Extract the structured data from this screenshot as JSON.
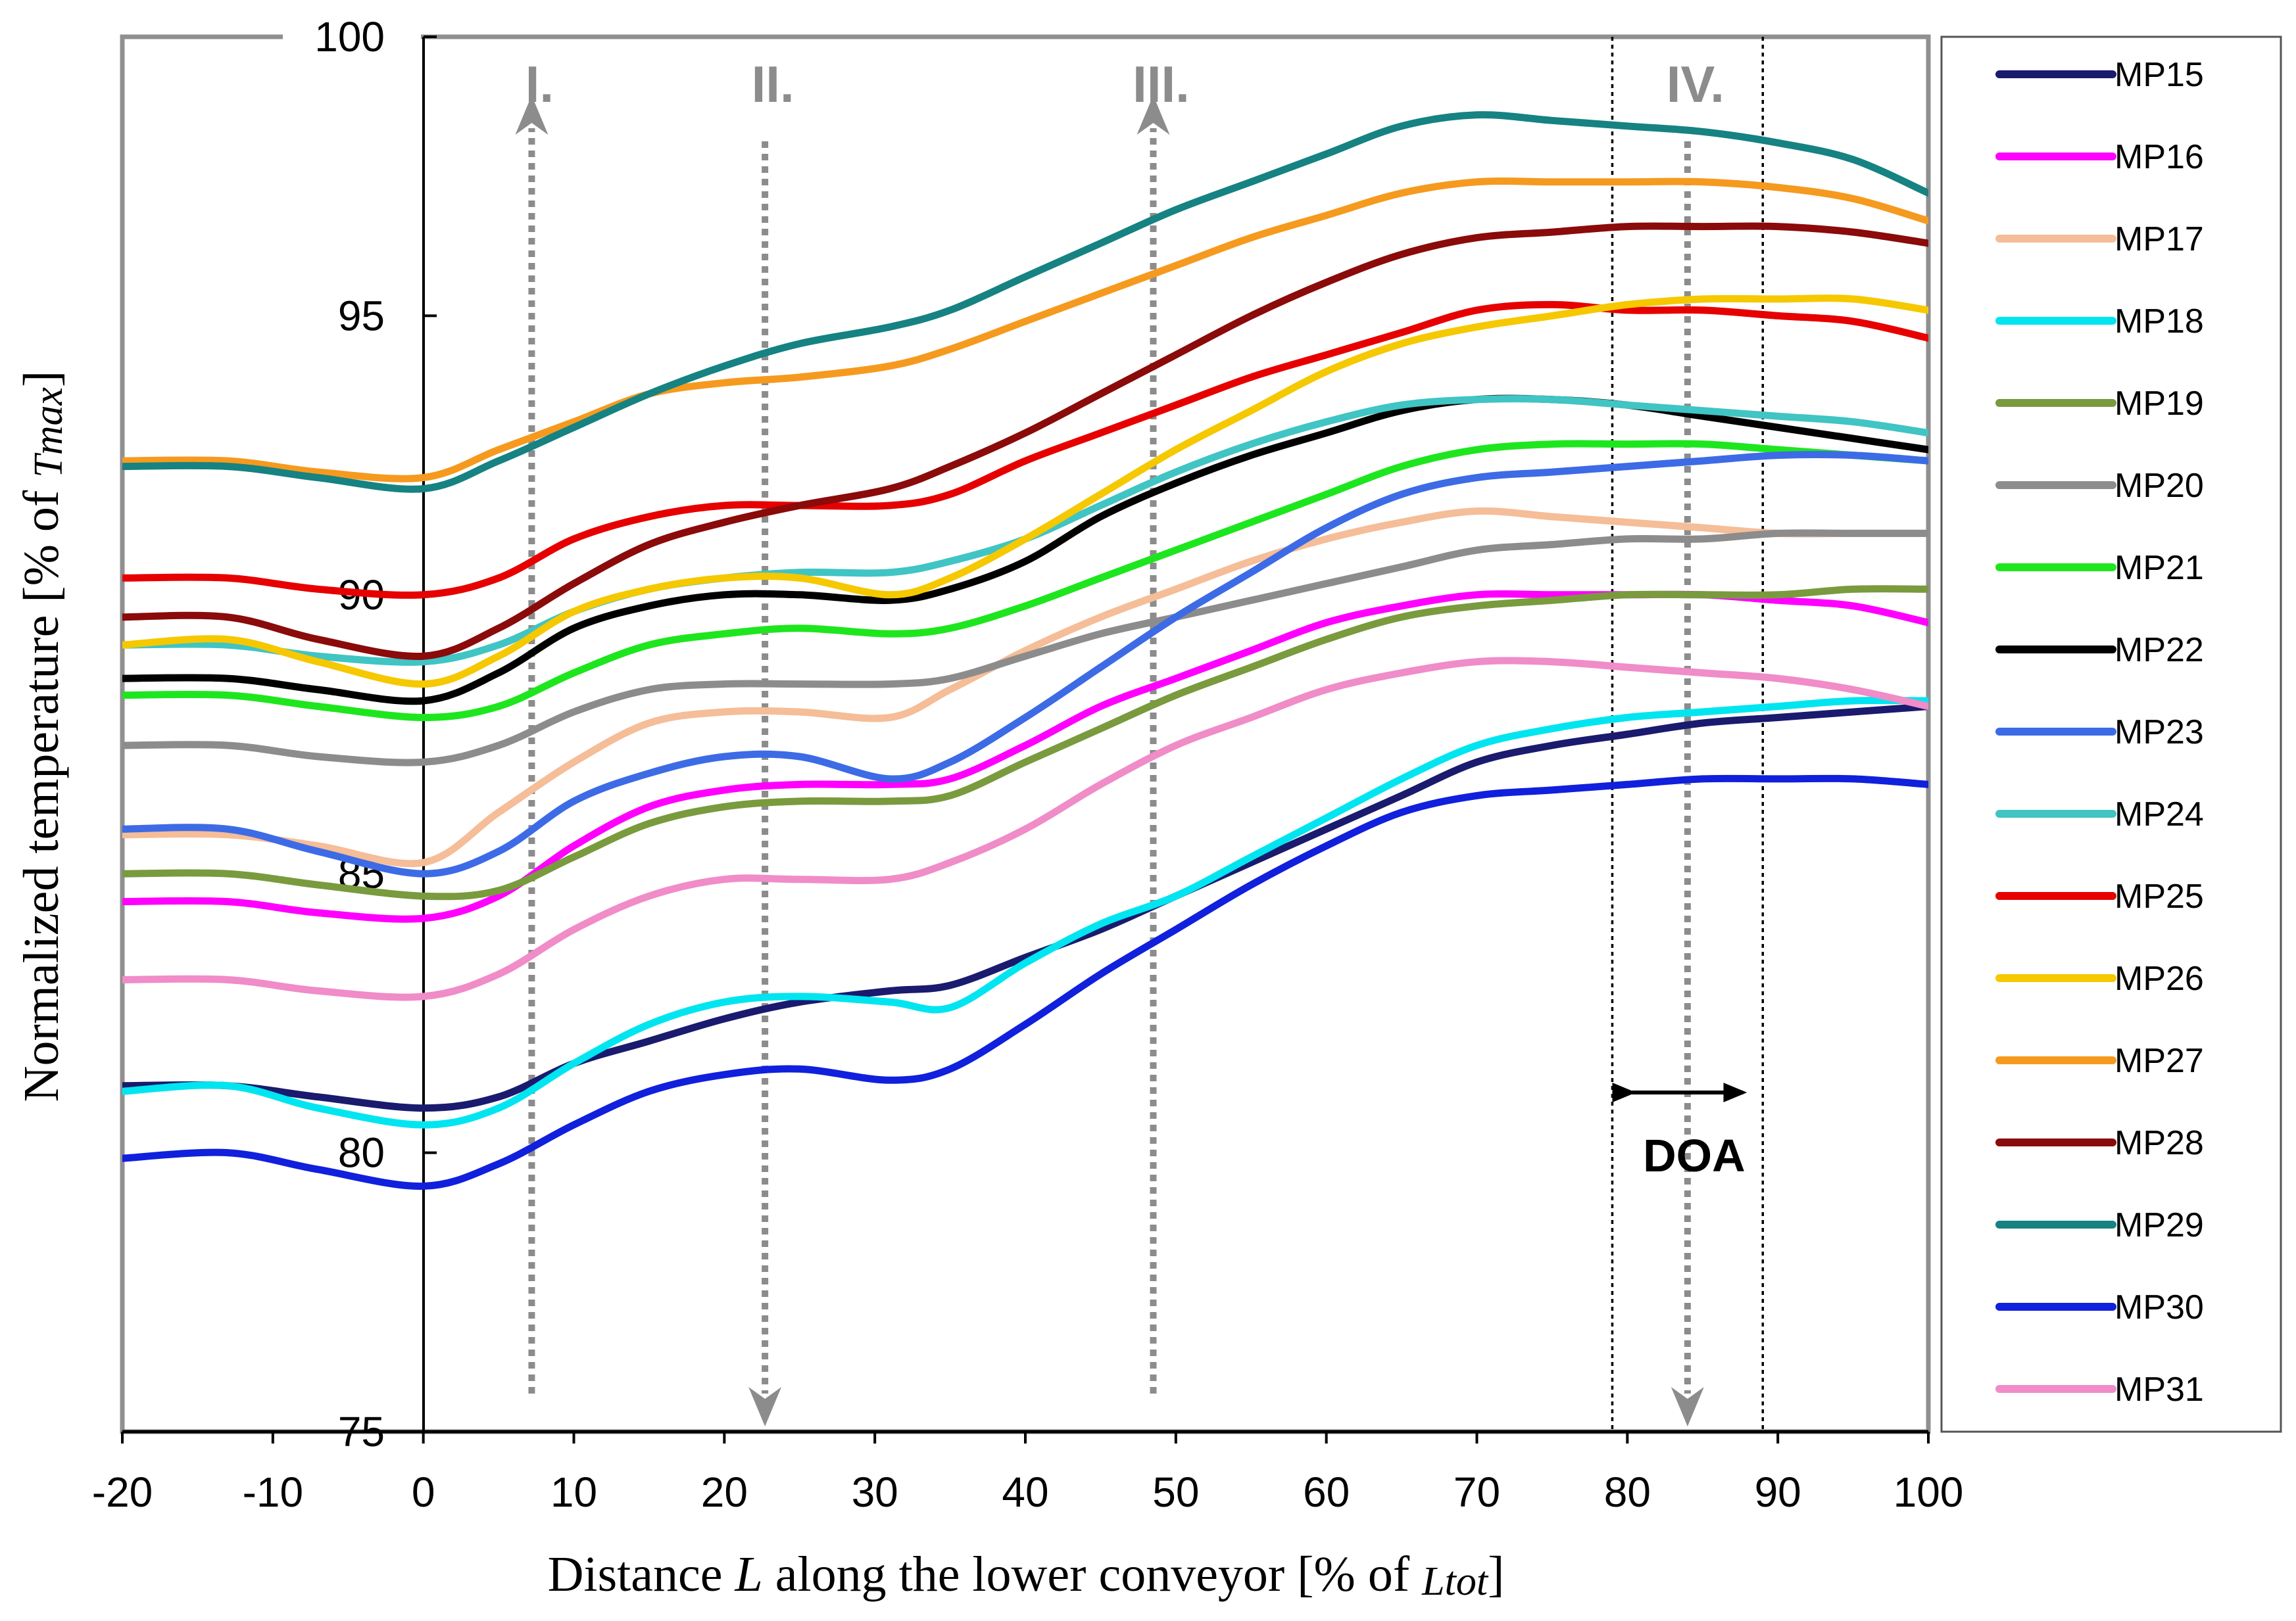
{
  "chart_data": {
    "type": "line",
    "xlabel_prefix": "Distance ",
    "xlabel_var": "L",
    "xlabel_mid": " along the lower conveyor [% of ",
    "xlabel_sub": "Ltot",
    "xlabel_end": "]",
    "ylabel_prefix": "Normalized temperature  [% of ",
    "ylabel_sub": "Tmax",
    "ylabel_end": "]",
    "xlim": [
      -20,
      100
    ],
    "ylim": [
      75,
      100
    ],
    "x_ticks": [
      "-20",
      "-10",
      "0",
      "10",
      "20",
      "30",
      "40",
      "50",
      "60",
      "70",
      "80",
      "90",
      "100"
    ],
    "y_ticks": [
      "75",
      "80",
      "85",
      "90",
      "95",
      "100"
    ],
    "sections": [
      {
        "label": "I.",
        "x": 7.2,
        "direction": "up"
      },
      {
        "label": "II.",
        "x": 22.7,
        "direction": "down"
      },
      {
        "label": "III.",
        "x": 48.5,
        "direction": "up"
      },
      {
        "label": "IV.",
        "x": 84,
        "direction": "down"
      }
    ],
    "doa": {
      "label": "DOA",
      "x_start": 79,
      "x_end": 89
    },
    "x": [
      -20,
      -13,
      -7,
      0,
      5,
      10,
      15,
      20,
      25,
      31,
      35,
      40,
      45,
      50,
      55,
      60,
      65,
      70,
      75,
      80,
      85,
      90,
      95,
      100
    ],
    "series": [
      {
        "name": "MP15",
        "color": "#1a1a6e",
        "values": [
          81.2,
          81.2,
          81.0,
          80.8,
          81.0,
          81.6,
          82.0,
          82.4,
          82.7,
          82.9,
          83.0,
          83.5,
          84.0,
          84.6,
          85.2,
          85.8,
          86.4,
          87.0,
          87.3,
          87.5,
          87.7,
          87.8,
          87.9,
          88.0
        ]
      },
      {
        "name": "MP16",
        "color": "#ff00ff",
        "values": [
          84.5,
          84.5,
          84.3,
          84.2,
          84.6,
          85.5,
          86.2,
          86.5,
          86.6,
          86.6,
          86.7,
          87.3,
          88.0,
          88.5,
          89.0,
          89.5,
          89.8,
          90.0,
          90.0,
          90.0,
          90.0,
          89.9,
          89.8,
          89.5
        ]
      },
      {
        "name": "MP17",
        "color": "#f5bd98",
        "values": [
          85.7,
          85.7,
          85.5,
          85.2,
          86.1,
          87.0,
          87.7,
          87.9,
          87.9,
          87.8,
          88.3,
          89.0,
          89.6,
          90.1,
          90.6,
          91.0,
          91.3,
          91.5,
          91.4,
          91.3,
          91.2,
          91.1,
          91.1,
          91.1
        ]
      },
      {
        "name": "MP18",
        "color": "#00e5f0",
        "values": [
          81.1,
          81.2,
          80.8,
          80.5,
          80.8,
          81.6,
          82.3,
          82.7,
          82.8,
          82.7,
          82.6,
          83.4,
          84.1,
          84.6,
          85.3,
          86.0,
          86.7,
          87.3,
          87.6,
          87.8,
          87.9,
          88.0,
          88.1,
          88.1
        ]
      },
      {
        "name": "MP19",
        "color": "#7a9a3e",
        "values": [
          85.0,
          85.0,
          84.8,
          84.6,
          84.7,
          85.3,
          85.9,
          86.2,
          86.3,
          86.3,
          86.4,
          87.0,
          87.6,
          88.2,
          88.7,
          89.2,
          89.6,
          89.8,
          89.9,
          90.0,
          90.0,
          90.0,
          90.1,
          90.1
        ]
      },
      {
        "name": "MP20",
        "color": "#8c8c8c",
        "values": [
          87.3,
          87.3,
          87.1,
          87.0,
          87.3,
          87.9,
          88.3,
          88.4,
          88.4,
          88.4,
          88.5,
          88.9,
          89.3,
          89.6,
          89.9,
          90.2,
          90.5,
          90.8,
          90.9,
          91.0,
          91.0,
          91.1,
          91.1,
          91.1
        ]
      },
      {
        "name": "MP21",
        "color": "#1ee61e",
        "values": [
          88.2,
          88.2,
          88.0,
          87.8,
          88.0,
          88.6,
          89.1,
          89.3,
          89.4,
          89.3,
          89.4,
          89.8,
          90.3,
          90.8,
          91.3,
          91.8,
          92.3,
          92.6,
          92.7,
          92.7,
          92.7,
          92.6,
          92.5,
          92.4
        ]
      },
      {
        "name": "MP22",
        "color": "#000000",
        "values": [
          88.5,
          88.5,
          88.3,
          88.1,
          88.6,
          89.4,
          89.8,
          90.0,
          90.0,
          89.9,
          90.1,
          90.6,
          91.4,
          92.0,
          92.5,
          92.9,
          93.3,
          93.5,
          93.5,
          93.4,
          93.2,
          93.0,
          92.8,
          92.6
        ]
      },
      {
        "name": "MP23",
        "color": "#3d6be6",
        "values": [
          85.8,
          85.8,
          85.4,
          85.0,
          85.4,
          86.3,
          86.8,
          87.1,
          87.1,
          86.7,
          87.0,
          87.8,
          88.7,
          89.6,
          90.4,
          91.2,
          91.8,
          92.1,
          92.2,
          92.3,
          92.4,
          92.5,
          92.5,
          92.4
        ]
      },
      {
        "name": "MP24",
        "color": "#40c4c4",
        "values": [
          89.1,
          89.1,
          88.9,
          88.8,
          89.1,
          89.7,
          90.1,
          90.3,
          90.4,
          90.4,
          90.6,
          91.0,
          91.6,
          92.2,
          92.7,
          93.1,
          93.4,
          93.5,
          93.5,
          93.4,
          93.3,
          93.2,
          93.1,
          92.9
        ]
      },
      {
        "name": "MP25",
        "color": "#e60000",
        "values": [
          90.3,
          90.3,
          90.1,
          90.0,
          90.3,
          91.0,
          91.4,
          91.6,
          91.6,
          91.6,
          91.8,
          92.4,
          92.9,
          93.4,
          93.9,
          94.3,
          94.7,
          95.1,
          95.2,
          95.1,
          95.1,
          95.0,
          94.9,
          94.6
        ]
      },
      {
        "name": "MP26",
        "color": "#f5c800",
        "values": [
          89.1,
          89.2,
          88.8,
          88.4,
          88.9,
          89.7,
          90.1,
          90.3,
          90.3,
          90.0,
          90.3,
          91.0,
          91.8,
          92.6,
          93.3,
          94.0,
          94.5,
          94.8,
          95.0,
          95.2,
          95.3,
          95.3,
          95.3,
          95.1
        ]
      },
      {
        "name": "MP27",
        "color": "#f59a1e",
        "values": [
          92.4,
          92.4,
          92.2,
          92.1,
          92.6,
          93.1,
          93.6,
          93.8,
          93.9,
          94.1,
          94.4,
          94.9,
          95.4,
          95.9,
          96.4,
          96.8,
          97.2,
          97.4,
          97.4,
          97.4,
          97.4,
          97.3,
          97.1,
          96.7
        ]
      },
      {
        "name": "MP28",
        "color": "#8b0a0a",
        "values": [
          89.6,
          89.6,
          89.2,
          88.9,
          89.4,
          90.2,
          90.9,
          91.3,
          91.6,
          91.9,
          92.3,
          92.9,
          93.6,
          94.3,
          95.0,
          95.6,
          96.1,
          96.4,
          96.5,
          96.6,
          96.6,
          96.6,
          96.5,
          96.3
        ]
      },
      {
        "name": "MP29",
        "color": "#168282",
        "values": [
          92.3,
          92.3,
          92.1,
          91.9,
          92.4,
          93.0,
          93.6,
          94.1,
          94.5,
          94.8,
          95.1,
          95.7,
          96.3,
          96.9,
          97.4,
          97.9,
          98.4,
          98.6,
          98.5,
          98.4,
          98.3,
          98.1,
          97.8,
          97.2
        ]
      },
      {
        "name": "MP30",
        "color": "#1020dc",
        "values": [
          79.9,
          80.0,
          79.7,
          79.4,
          79.8,
          80.5,
          81.1,
          81.4,
          81.5,
          81.3,
          81.5,
          82.3,
          83.2,
          84.0,
          84.8,
          85.5,
          86.1,
          86.4,
          86.5,
          86.6,
          86.7,
          86.7,
          86.7,
          86.6
        ]
      },
      {
        "name": "MP31",
        "color": "#f08cc8",
        "values": [
          83.1,
          83.1,
          82.9,
          82.8,
          83.2,
          84.0,
          84.6,
          84.9,
          84.9,
          84.9,
          85.2,
          85.8,
          86.6,
          87.3,
          87.8,
          88.3,
          88.6,
          88.8,
          88.8,
          88.7,
          88.6,
          88.5,
          88.3,
          88.0
        ]
      }
    ]
  }
}
